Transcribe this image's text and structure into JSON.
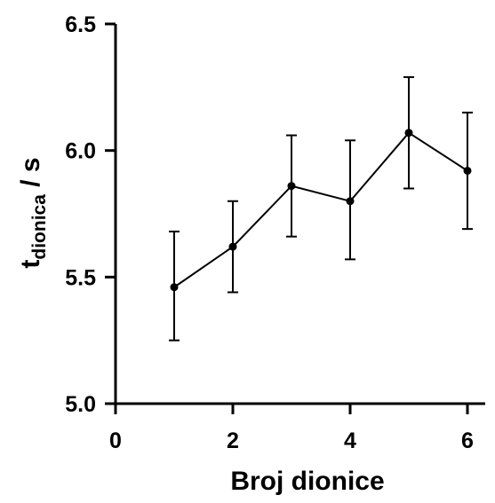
{
  "chart_data": {
    "type": "line",
    "xlabel": "Broj dionice",
    "ylabel": {
      "main": "t",
      "subscript": "dionica",
      "suffix": " / s"
    },
    "xlim": [
      0,
      6.5
    ],
    "ylim": [
      5.0,
      6.5
    ],
    "x_ticks": [
      0,
      2,
      4,
      6
    ],
    "x_tick_labels": [
      "0",
      "2",
      "4",
      "6"
    ],
    "y_ticks": [
      5.0,
      5.5,
      6.0,
      6.5
    ],
    "y_tick_labels": [
      "5.0",
      "5.5",
      "6.0",
      "6.5"
    ],
    "grid": false,
    "series": [
      {
        "x": [
          1,
          2,
          3,
          4,
          5,
          6
        ],
        "y": [
          5.46,
          5.62,
          5.86,
          5.8,
          6.07,
          5.92
        ],
        "err_upper": [
          5.68,
          5.8,
          6.06,
          6.04,
          6.29,
          6.15
        ],
        "err_lower": [
          5.25,
          5.44,
          5.66,
          5.57,
          5.85,
          5.69
        ],
        "color": "#000000"
      }
    ]
  }
}
